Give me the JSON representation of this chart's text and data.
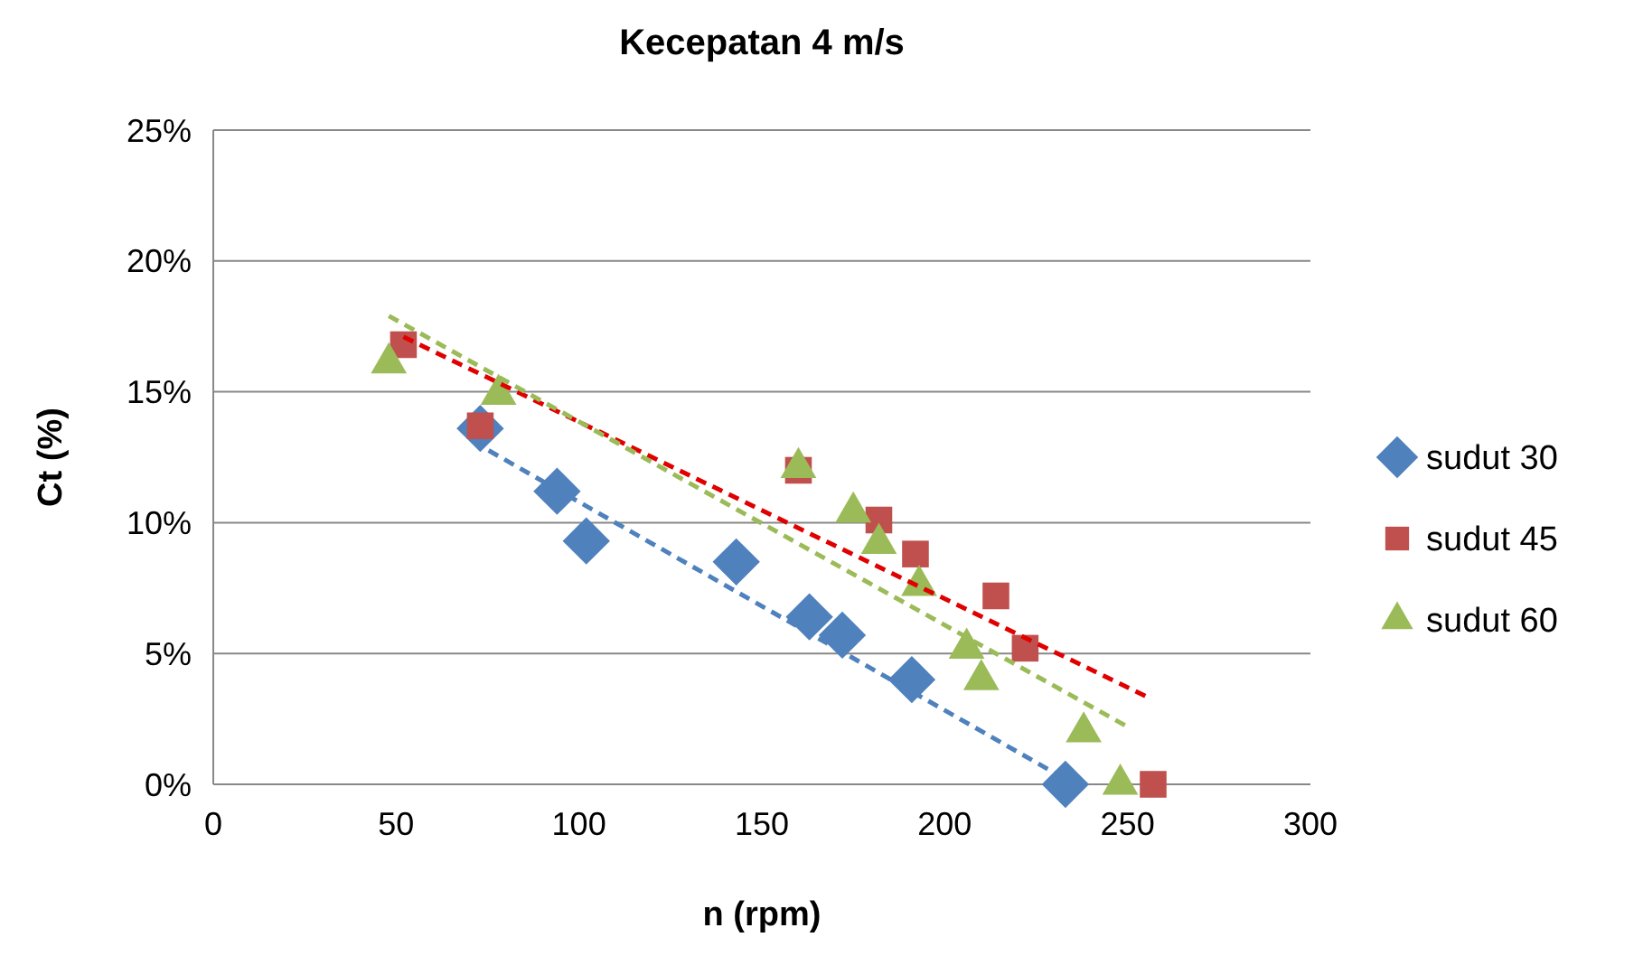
{
  "chart_data": {
    "type": "scatter",
    "title": "Kecepatan 4 m/s",
    "xlabel": "n (rpm)",
    "ylabel": "Ct (%)",
    "xlim": [
      0,
      300
    ],
    "xticks": [
      0,
      50,
      100,
      150,
      200,
      250,
      300
    ],
    "ylim": [
      0,
      25
    ],
    "yticks": [
      {
        "value": 0,
        "label": "0%"
      },
      {
        "value": 5,
        "label": "5%"
      },
      {
        "value": 10,
        "label": "10%"
      },
      {
        "value": 15,
        "label": "15%"
      },
      {
        "value": 20,
        "label": "20%"
      },
      {
        "value": 25,
        "label": "25%"
      }
    ],
    "grid": "y",
    "legend": "right",
    "series": [
      {
        "name": "sudut 30",
        "color": "#4f81bd",
        "marker": "diamond",
        "x": [
          73,
          94,
          102,
          143,
          163,
          172,
          191,
          233
        ],
        "values": [
          13.6,
          11.2,
          9.3,
          8.5,
          6.4,
          5.7,
          4.0,
          0
        ]
      },
      {
        "name": "sudut 45",
        "color": "#c0504d",
        "marker": "square",
        "x": [
          52,
          73,
          160,
          182,
          192,
          214,
          222,
          257
        ],
        "values": [
          16.8,
          13.7,
          12.0,
          10.1,
          8.8,
          7.2,
          5.2,
          0
        ]
      },
      {
        "name": "sudut 60",
        "color": "#9bbb59",
        "marker": "triangle",
        "x": [
          48,
          78,
          160,
          175,
          182,
          193,
          206,
          210,
          238,
          248
        ],
        "values": [
          16.1,
          14.9,
          12.1,
          10.4,
          9.2,
          7.6,
          5.2,
          4.0,
          2.0,
          0
        ]
      },
      {
        "type": "line",
        "color": "#4f81bd",
        "line_style": "dashed",
        "marker": "none",
        "x": [
          71,
          233
        ],
        "values": [
          13.1,
          0.2
        ]
      },
      {
        "type": "line",
        "color": "#e00000",
        "line_style": "dashed",
        "marker": "none",
        "x": [
          52,
          256
        ],
        "values": [
          17.1,
          3.3
        ]
      },
      {
        "type": "line",
        "color": "#9bbb59",
        "line_style": "dashed",
        "marker": "none",
        "x": [
          48,
          250
        ],
        "values": [
          17.9,
          2.2
        ]
      }
    ]
  }
}
